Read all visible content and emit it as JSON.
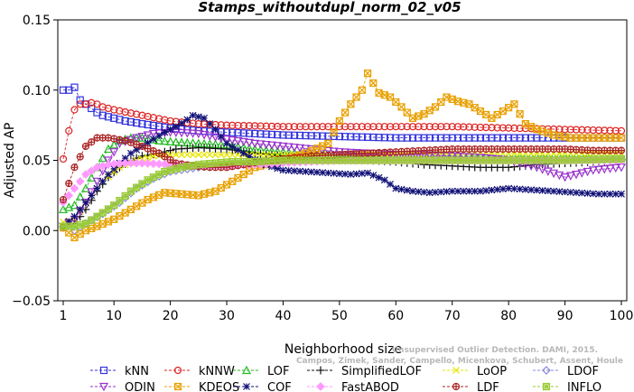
{
  "chart_data": {
    "type": "line",
    "title": "Stamps_withoutdupl_norm_02_v05",
    "xlabel": "Neighborhood size",
    "ylabel": "Adjusted AP",
    "xlim": [
      1,
      100
    ],
    "ylim": [
      -0.05,
      0.15
    ],
    "x_ticks": [
      1,
      10,
      20,
      30,
      40,
      50,
      60,
      70,
      80,
      90,
      100
    ],
    "y_ticks": [
      -0.05,
      0.0,
      0.05,
      0.1,
      0.15
    ],
    "y_tick_labels": [
      "−0.05",
      "0.00",
      "0.05",
      "0.10",
      "0.15"
    ],
    "grid": false,
    "legend_position": "bottom",
    "watermark": [
      "Unsupervised Outlier Detection. DAMI, 2015.",
      "Campos, Zimek, Sander, Campello, Micenkova, Schubert, Assent, Houle"
    ],
    "series": [
      {
        "name": "kNN",
        "color": "#3333dd",
        "marker": "square",
        "dashed": true,
        "points": [
          [
            1,
            0.1
          ],
          [
            2,
            0.1
          ],
          [
            3,
            0.102
          ],
          [
            4,
            0.093
          ],
          [
            5,
            0.09
          ],
          [
            6,
            0.087
          ],
          [
            7,
            0.084
          ],
          [
            8,
            0.082
          ],
          [
            10,
            0.08
          ],
          [
            12,
            0.078
          ],
          [
            15,
            0.076
          ],
          [
            20,
            0.073
          ],
          [
            25,
            0.071
          ],
          [
            30,
            0.07
          ],
          [
            35,
            0.069
          ],
          [
            40,
            0.068
          ],
          [
            50,
            0.067
          ],
          [
            60,
            0.066
          ],
          [
            70,
            0.066
          ],
          [
            80,
            0.066
          ],
          [
            90,
            0.066
          ],
          [
            100,
            0.066
          ]
        ]
      },
      {
        "name": "kNNW",
        "color": "#dd2222",
        "marker": "circle",
        "dashed": true,
        "points": [
          [
            1,
            0.051
          ],
          [
            2,
            0.071
          ],
          [
            3,
            0.086
          ],
          [
            4,
            0.09
          ],
          [
            5,
            0.09
          ],
          [
            6,
            0.091
          ],
          [
            7,
            0.09
          ],
          [
            8,
            0.088
          ],
          [
            10,
            0.086
          ],
          [
            15,
            0.082
          ],
          [
            20,
            0.078
          ],
          [
            25,
            0.076
          ],
          [
            30,
            0.075
          ],
          [
            40,
            0.074
          ],
          [
            50,
            0.074
          ],
          [
            60,
            0.074
          ],
          [
            70,
            0.074
          ],
          [
            80,
            0.073
          ],
          [
            90,
            0.072
          ],
          [
            100,
            0.071
          ]
        ]
      },
      {
        "name": "LOF",
        "color": "#22bb22",
        "marker": "triangle",
        "dashed": true,
        "points": [
          [
            1,
            0.015
          ],
          [
            3,
            0.018
          ],
          [
            5,
            0.03
          ],
          [
            7,
            0.045
          ],
          [
            9,
            0.058
          ],
          [
            11,
            0.064
          ],
          [
            13,
            0.066
          ],
          [
            15,
            0.066
          ],
          [
            18,
            0.064
          ],
          [
            21,
            0.063
          ],
          [
            25,
            0.062
          ],
          [
            30,
            0.061
          ],
          [
            35,
            0.058
          ],
          [
            40,
            0.056
          ],
          [
            45,
            0.054
          ],
          [
            50,
            0.053
          ],
          [
            55,
            0.052
          ],
          [
            60,
            0.052
          ],
          [
            65,
            0.053
          ],
          [
            70,
            0.053
          ],
          [
            75,
            0.053
          ],
          [
            80,
            0.053
          ],
          [
            90,
            0.053
          ],
          [
            100,
            0.053
          ]
        ]
      },
      {
        "name": "SimplifiedLOF",
        "color": "#111111",
        "marker": "plus",
        "dashed": true,
        "points": [
          [
            1,
            0.003
          ],
          [
            3,
            0.005
          ],
          [
            5,
            0.015
          ],
          [
            7,
            0.028
          ],
          [
            9,
            0.038
          ],
          [
            11,
            0.045
          ],
          [
            13,
            0.05
          ],
          [
            15,
            0.053
          ],
          [
            18,
            0.055
          ],
          [
            21,
            0.058
          ],
          [
            25,
            0.059
          ],
          [
            30,
            0.058
          ],
          [
            35,
            0.055
          ],
          [
            40,
            0.053
          ],
          [
            45,
            0.051
          ],
          [
            50,
            0.05
          ],
          [
            55,
            0.05
          ],
          [
            60,
            0.049
          ],
          [
            65,
            0.047
          ],
          [
            70,
            0.046
          ],
          [
            75,
            0.045
          ],
          [
            80,
            0.045
          ],
          [
            85,
            0.047
          ],
          [
            90,
            0.048
          ],
          [
            95,
            0.049
          ],
          [
            100,
            0.05
          ]
        ]
      },
      {
        "name": "LoOP",
        "color": "#e6e600",
        "marker": "x",
        "dashed": true,
        "points": [
          [
            1,
            0.006
          ],
          [
            3,
            0.008
          ],
          [
            5,
            0.02
          ],
          [
            8,
            0.035
          ],
          [
            11,
            0.045
          ],
          [
            14,
            0.05
          ],
          [
            17,
            0.053
          ],
          [
            20,
            0.054
          ],
          [
            25,
            0.054
          ],
          [
            30,
            0.054
          ],
          [
            40,
            0.054
          ],
          [
            50,
            0.055
          ],
          [
            60,
            0.055
          ],
          [
            70,
            0.055
          ],
          [
            80,
            0.055
          ],
          [
            90,
            0.055
          ],
          [
            100,
            0.055
          ]
        ]
      },
      {
        "name": "LDOF",
        "color": "#8888dd",
        "marker": "diamond",
        "dashed": true,
        "points": [
          [
            1,
            0.002
          ],
          [
            3,
            0.0
          ],
          [
            5,
            0.005
          ],
          [
            8,
            0.012
          ],
          [
            11,
            0.02
          ],
          [
            14,
            0.03
          ],
          [
            17,
            0.037
          ],
          [
            20,
            0.042
          ],
          [
            25,
            0.045
          ],
          [
            30,
            0.047
          ],
          [
            35,
            0.048
          ],
          [
            40,
            0.049
          ],
          [
            50,
            0.05
          ],
          [
            60,
            0.05
          ],
          [
            70,
            0.05
          ],
          [
            80,
            0.05
          ],
          [
            90,
            0.05
          ],
          [
            100,
            0.05
          ]
        ]
      },
      {
        "name": "ODIN",
        "color": "#9933cc",
        "marker": "triangle-down",
        "dashed": true,
        "points": [
          [
            1,
            0.003
          ],
          [
            3,
            0.008
          ],
          [
            5,
            0.02
          ],
          [
            7,
            0.035
          ],
          [
            9,
            0.05
          ],
          [
            11,
            0.062
          ],
          [
            14,
            0.066
          ],
          [
            17,
            0.069
          ],
          [
            20,
            0.07
          ],
          [
            25,
            0.069
          ],
          [
            30,
            0.065
          ],
          [
            35,
            0.062
          ],
          [
            40,
            0.06
          ],
          [
            45,
            0.058
          ],
          [
            50,
            0.056
          ],
          [
            55,
            0.055
          ],
          [
            60,
            0.054
          ],
          [
            65,
            0.054
          ],
          [
            70,
            0.053
          ],
          [
            75,
            0.052
          ],
          [
            80,
            0.05
          ],
          [
            85,
            0.045
          ],
          [
            90,
            0.038
          ],
          [
            95,
            0.043
          ],
          [
            100,
            0.045
          ]
        ]
      },
      {
        "name": "KDEOS",
        "color": "#e8a000",
        "marker": "square-x",
        "dashed": true,
        "points": [
          [
            1,
            0.002
          ],
          [
            3,
            -0.005
          ],
          [
            5,
            0.0
          ],
          [
            7,
            0.003
          ],
          [
            10,
            0.008
          ],
          [
            13,
            0.015
          ],
          [
            16,
            0.022
          ],
          [
            19,
            0.027
          ],
          [
            22,
            0.026
          ],
          [
            25,
            0.025
          ],
          [
            28,
            0.028
          ],
          [
            31,
            0.035
          ],
          [
            35,
            0.045
          ],
          [
            40,
            0.05
          ],
          [
            44,
            0.055
          ],
          [
            48,
            0.062
          ],
          [
            50,
            0.078
          ],
          [
            52,
            0.09
          ],
          [
            54,
            0.1
          ],
          [
            55,
            0.112
          ],
          [
            57,
            0.098
          ],
          [
            59,
            0.095
          ],
          [
            61,
            0.088
          ],
          [
            63,
            0.08
          ],
          [
            65,
            0.083
          ],
          [
            67,
            0.088
          ],
          [
            69,
            0.095
          ],
          [
            71,
            0.092
          ],
          [
            73,
            0.09
          ],
          [
            75,
            0.085
          ],
          [
            77,
            0.08
          ],
          [
            79,
            0.085
          ],
          [
            81,
            0.09
          ],
          [
            83,
            0.076
          ],
          [
            85,
            0.072
          ],
          [
            88,
            0.068
          ],
          [
            91,
            0.066
          ],
          [
            95,
            0.066
          ],
          [
            100,
            0.066
          ]
        ]
      },
      {
        "name": "COF",
        "color": "#111177",
        "marker": "star",
        "dashed": true,
        "points": [
          [
            1,
            0.003
          ],
          [
            3,
            0.01
          ],
          [
            5,
            0.02
          ],
          [
            7,
            0.03
          ],
          [
            9,
            0.04
          ],
          [
            11,
            0.048
          ],
          [
            13,
            0.055
          ],
          [
            15,
            0.06
          ],
          [
            17,
            0.065
          ],
          [
            19,
            0.07
          ],
          [
            21,
            0.074
          ],
          [
            23,
            0.079
          ],
          [
            24,
            0.082
          ],
          [
            26,
            0.08
          ],
          [
            28,
            0.072
          ],
          [
            30,
            0.062
          ],
          [
            33,
            0.055
          ],
          [
            36,
            0.048
          ],
          [
            40,
            0.043
          ],
          [
            44,
            0.042
          ],
          [
            48,
            0.041
          ],
          [
            52,
            0.04
          ],
          [
            55,
            0.041
          ],
          [
            58,
            0.036
          ],
          [
            60,
            0.03
          ],
          [
            63,
            0.028
          ],
          [
            66,
            0.027
          ],
          [
            70,
            0.028
          ],
          [
            75,
            0.028
          ],
          [
            80,
            0.03
          ],
          [
            84,
            0.029
          ],
          [
            88,
            0.028
          ],
          [
            92,
            0.027
          ],
          [
            96,
            0.026
          ],
          [
            100,
            0.026
          ]
        ]
      },
      {
        "name": "FastABOD",
        "color": "#ff99ff",
        "marker": "diamond-filled",
        "dashed": true,
        "points": [
          [
            1,
            0.02
          ],
          [
            3,
            0.03
          ],
          [
            5,
            0.04
          ],
          [
            7,
            0.045
          ],
          [
            9,
            0.047
          ],
          [
            12,
            0.048
          ],
          [
            15,
            0.048
          ],
          [
            20,
            0.047
          ],
          [
            25,
            0.046
          ],
          [
            30,
            0.046
          ],
          [
            35,
            0.047
          ],
          [
            40,
            0.048
          ],
          [
            45,
            0.049
          ],
          [
            50,
            0.05
          ],
          [
            55,
            0.05
          ],
          [
            60,
            0.05
          ],
          [
            70,
            0.05
          ],
          [
            80,
            0.05
          ],
          [
            90,
            0.05
          ],
          [
            100,
            0.05
          ]
        ]
      },
      {
        "name": "LDF",
        "color": "#aa2222",
        "marker": "circle-plus",
        "dashed": true,
        "points": [
          [
            1,
            0.022
          ],
          [
            3,
            0.045
          ],
          [
            5,
            0.06
          ],
          [
            7,
            0.066
          ],
          [
            9,
            0.066
          ],
          [
            12,
            0.064
          ],
          [
            15,
            0.06
          ],
          [
            18,
            0.055
          ],
          [
            21,
            0.048
          ],
          [
            24,
            0.046
          ],
          [
            27,
            0.045
          ],
          [
            30,
            0.045
          ],
          [
            33,
            0.047
          ],
          [
            36,
            0.049
          ],
          [
            40,
            0.051
          ],
          [
            45,
            0.053
          ],
          [
            50,
            0.054
          ],
          [
            55,
            0.055
          ],
          [
            60,
            0.056
          ],
          [
            65,
            0.057
          ],
          [
            70,
            0.058
          ],
          [
            75,
            0.058
          ],
          [
            80,
            0.058
          ],
          [
            85,
            0.058
          ],
          [
            90,
            0.058
          ],
          [
            95,
            0.057
          ],
          [
            100,
            0.057
          ]
        ]
      },
      {
        "name": "INFLO",
        "color": "#99cc33",
        "marker": "square-star",
        "dashed": true,
        "points": [
          [
            1,
            0.003
          ],
          [
            3,
            0.003
          ],
          [
            5,
            0.005
          ],
          [
            7,
            0.01
          ],
          [
            10,
            0.018
          ],
          [
            13,
            0.028
          ],
          [
            16,
            0.036
          ],
          [
            19,
            0.042
          ],
          [
            22,
            0.045
          ],
          [
            25,
            0.047
          ],
          [
            28,
            0.048
          ],
          [
            31,
            0.049
          ],
          [
            35,
            0.049
          ],
          [
            40,
            0.05
          ],
          [
            45,
            0.05
          ],
          [
            50,
            0.05
          ],
          [
            60,
            0.05
          ],
          [
            70,
            0.05
          ],
          [
            80,
            0.05
          ],
          [
            90,
            0.05
          ],
          [
            100,
            0.051
          ]
        ]
      }
    ]
  }
}
